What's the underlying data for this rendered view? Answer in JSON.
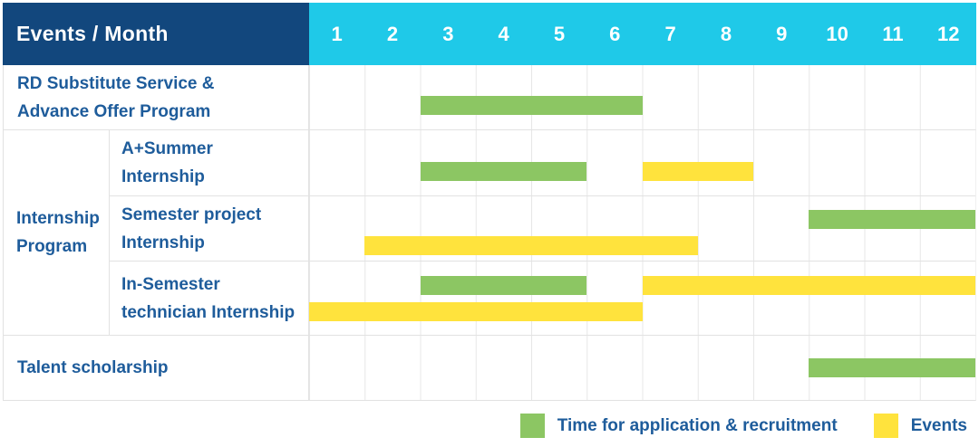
{
  "colors": {
    "page_bg": "#FFFFFF",
    "header_bg": "#12477D",
    "months_bg": "#1FC9E8",
    "header_text": "#FFFFFF",
    "label_text": "#1E5C9B",
    "grid_line": "#E7E7E7",
    "row_border": "#E2E2E2"
  },
  "chart_data": {
    "type": "gantt",
    "title": "Events / Month",
    "x_unit": "month",
    "x_categories": [
      "1",
      "2",
      "3",
      "4",
      "5",
      "6",
      "7",
      "8",
      "9",
      "10",
      "11",
      "12"
    ],
    "x_range": [
      1,
      12
    ],
    "grid": true,
    "legend_position": "bottom-right",
    "legend": [
      {
        "key": "application",
        "label": "Time for application & recruitment",
        "color": "#8CC663"
      },
      {
        "key": "event",
        "label": "Events",
        "color": "#FFE33D"
      }
    ],
    "rows": [
      {
        "label": "RD Substitute Service &\nAdvance Offer Program",
        "group": "",
        "lanes": [
          [
            {
              "key": "application",
              "start_month": 3,
              "end_month": 6
            }
          ]
        ]
      },
      {
        "label": "A+Summer\nInternship",
        "group": "Internship\nProgram",
        "lanes": [
          [
            {
              "key": "application",
              "start_month": 3,
              "end_month": 5
            },
            {
              "key": "event",
              "start_month": 7,
              "end_month": 8
            }
          ]
        ]
      },
      {
        "label": "Semester project\nInternship",
        "group": "Internship\nProgram",
        "lanes": [
          [
            {
              "key": "application",
              "start_month": 10,
              "end_month": 12
            }
          ],
          [
            {
              "key": "event",
              "start_month": 2,
              "end_month": 7
            }
          ]
        ]
      },
      {
        "label": "In-Semester\ntechnician Internship",
        "group": "Internship\nProgram",
        "lanes": [
          [
            {
              "key": "application",
              "start_month": 3,
              "end_month": 5
            },
            {
              "key": "event",
              "start_month": 7,
              "end_month": 12
            }
          ],
          [
            {
              "key": "event",
              "start_month": 1,
              "end_month": 6
            }
          ]
        ]
      },
      {
        "label": "Talent scholarship",
        "group": "",
        "lanes": [
          [
            {
              "key": "application",
              "start_month": 10,
              "end_month": 12
            }
          ]
        ]
      }
    ]
  }
}
